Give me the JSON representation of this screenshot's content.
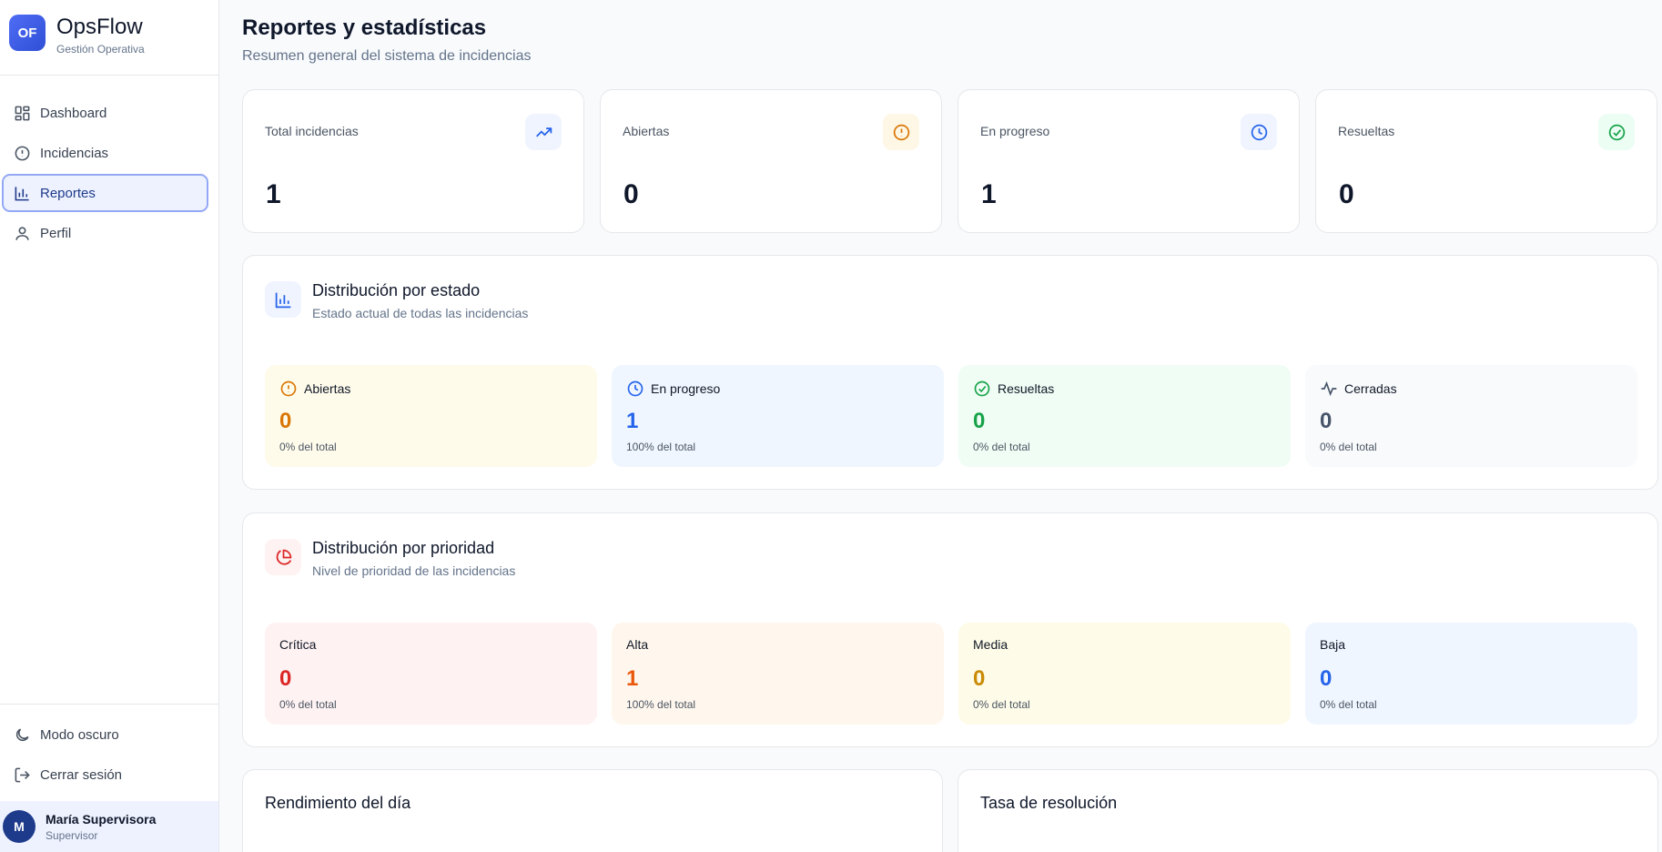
{
  "brand": {
    "logo": "OF",
    "name": "OpsFlow",
    "subtitle": "Gestión Operativa"
  },
  "nav": {
    "items": [
      {
        "label": "Dashboard",
        "icon": "grid-icon"
      },
      {
        "label": "Incidencias",
        "icon": "alert-circle-icon"
      },
      {
        "label": "Reportes",
        "icon": "bar-chart-icon",
        "active": true
      },
      {
        "label": "Perfil",
        "icon": "user-icon"
      }
    ],
    "bottom": [
      {
        "label": "Modo oscuro",
        "icon": "moon-icon"
      },
      {
        "label": "Cerrar sesión",
        "icon": "logout-icon"
      }
    ]
  },
  "user": {
    "initial": "M",
    "name": "María Supervisora",
    "role": "Supervisor"
  },
  "page": {
    "title": "Reportes y estadísticas",
    "subtitle": "Resumen general del sistema de incidencias"
  },
  "stats": [
    {
      "label": "Total incidencias",
      "value": "1",
      "icon": "trending-up-icon",
      "color": "#2563eb",
      "bg": "#eff4ff"
    },
    {
      "label": "Abiertas",
      "value": "0",
      "icon": "alert-circle-icon",
      "color": "#d97706",
      "bg": "#fef7e6"
    },
    {
      "label": "En progreso",
      "value": "1",
      "icon": "clock-icon",
      "color": "#2563eb",
      "bg": "#eff4ff"
    },
    {
      "label": "Resueltas",
      "value": "0",
      "icon": "check-circle-icon",
      "color": "#16a34a",
      "bg": "#ecfdf3"
    }
  ],
  "estado": {
    "title": "Distribución por estado",
    "subtitle": "Estado actual de todas las incidencias",
    "icon": "bar-chart-icon",
    "tiles": [
      {
        "label": "Abiertas",
        "value": "0",
        "pct": "0% del total",
        "icon": "alert-circle-icon",
        "color": "#d97706",
        "bg": "#fefbeb"
      },
      {
        "label": "En progreso",
        "value": "1",
        "pct": "100% del total",
        "icon": "clock-icon",
        "color": "#2563eb",
        "bg": "#eff6ff"
      },
      {
        "label": "Resueltas",
        "value": "0",
        "pct": "0% del total",
        "icon": "check-circle-icon",
        "color": "#16a34a",
        "bg": "#f0fdf4"
      },
      {
        "label": "Cerradas",
        "value": "0",
        "pct": "0% del total",
        "icon": "activity-icon",
        "color": "#475569",
        "bg": "#f8fafc"
      }
    ]
  },
  "prioridad": {
    "title": "Distribución por prioridad",
    "subtitle": "Nivel de prioridad de las incidencias",
    "icon": "pie-chart-icon",
    "tiles": [
      {
        "label": "Crítica",
        "value": "0",
        "pct": "0% del total",
        "color": "#dc2626",
        "bg": "#fef2f2"
      },
      {
        "label": "Alta",
        "value": "1",
        "pct": "100% del total",
        "color": "#ea580c",
        "bg": "#fff7ed"
      },
      {
        "label": "Media",
        "value": "0",
        "pct": "0% del total",
        "color": "#ca8a04",
        "bg": "#fefce8"
      },
      {
        "label": "Baja",
        "value": "0",
        "pct": "0% del total",
        "color": "#2563eb",
        "bg": "#eff6ff"
      }
    ]
  },
  "bottom_panels": {
    "left_title": "Rendimiento del día",
    "right_title": "Tasa de resolución"
  }
}
